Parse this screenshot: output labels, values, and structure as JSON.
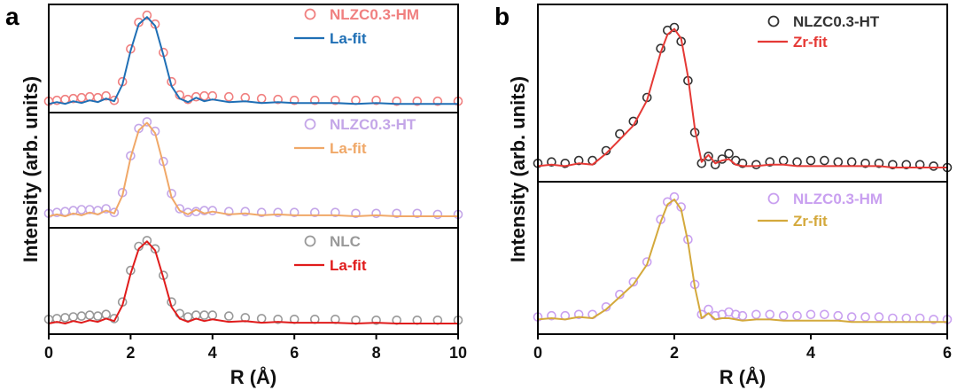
{
  "figure": {
    "panel_a_letter": "a",
    "panel_b_letter": "b"
  },
  "chart_data": [
    {
      "type": "line",
      "panel": "a",
      "xlabel": "R (Å)",
      "ylabel": "Intensity (arb. units)",
      "xlim": [
        0,
        10
      ],
      "xticks": [
        "0",
        "2",
        "4",
        "6",
        "8",
        "10"
      ],
      "subplots": [
        {
          "id": "a-top",
          "series": [
            {
              "name": "NLZC0.3-HM",
              "kind": "markers",
              "color": "#f08080",
              "x": [
                0,
                0.2,
                0.4,
                0.6,
                0.8,
                1.0,
                1.2,
                1.4,
                1.6,
                1.8,
                2.0,
                2.2,
                2.4,
                2.6,
                2.8,
                3.0,
                3.2,
                3.4,
                3.6,
                3.8,
                4.0,
                4.4,
                4.8,
                5.2,
                5.6,
                6.0,
                6.5,
                7.0,
                7.5,
                8.0,
                8.5,
                9.0,
                9.5,
                10.0
              ],
              "y": [
                0.03,
                0.04,
                0.05,
                0.06,
                0.07,
                0.08,
                0.07,
                0.09,
                0.04,
                0.25,
                0.62,
                0.92,
                1.0,
                0.9,
                0.58,
                0.25,
                0.1,
                0.05,
                0.08,
                0.09,
                0.09,
                0.08,
                0.07,
                0.06,
                0.05,
                0.04,
                0.04,
                0.04,
                0.04,
                0.04,
                0.03,
                0.03,
                0.03,
                0.03
              ]
            },
            {
              "name": "La-fit",
              "kind": "line",
              "color": "#1f6fb5",
              "x": [
                0,
                0.2,
                0.4,
                0.6,
                0.8,
                1.0,
                1.2,
                1.4,
                1.6,
                1.8,
                2.0,
                2.2,
                2.4,
                2.6,
                2.8,
                3.0,
                3.2,
                3.4,
                3.6,
                3.8,
                4.0,
                4.4,
                4.8,
                5.2,
                5.6,
                6.0,
                6.5,
                7.0,
                7.5,
                8.0,
                8.5,
                9.0,
                9.5,
                10.0
              ],
              "y": [
                0.0,
                0.02,
                0.0,
                0.03,
                0.01,
                0.04,
                0.02,
                0.06,
                0.03,
                0.22,
                0.6,
                0.9,
                0.98,
                0.88,
                0.55,
                0.2,
                0.06,
                0.02,
                0.07,
                0.03,
                0.05,
                0.02,
                0.03,
                0.01,
                0.02,
                0.01,
                0.01,
                0.01,
                0.0,
                0.01,
                0.0,
                0.0,
                0.0,
                0.0
              ]
            }
          ]
        },
        {
          "id": "a-middle",
          "series": [
            {
              "name": "NLZC0.3-HT",
              "kind": "markers",
              "color": "#c4a6e8",
              "x": [
                0,
                0.2,
                0.4,
                0.6,
                0.8,
                1.0,
                1.2,
                1.4,
                1.6,
                1.8,
                2.0,
                2.2,
                2.4,
                2.6,
                2.8,
                3.0,
                3.2,
                3.4,
                3.6,
                3.8,
                4.0,
                4.4,
                4.8,
                5.2,
                5.6,
                6.0,
                6.5,
                7.0,
                7.5,
                8.0,
                8.5,
                9.0,
                9.5,
                10.0
              ],
              "y": [
                0.03,
                0.04,
                0.05,
                0.06,
                0.07,
                0.07,
                0.06,
                0.08,
                0.04,
                0.25,
                0.64,
                0.93,
                1.0,
                0.9,
                0.58,
                0.24,
                0.08,
                0.04,
                0.05,
                0.06,
                0.06,
                0.05,
                0.05,
                0.04,
                0.04,
                0.04,
                0.04,
                0.04,
                0.03,
                0.03,
                0.03,
                0.03,
                0.02,
                0.02
              ]
            },
            {
              "name": "La-fit",
              "kind": "line",
              "color": "#f0a868",
              "x": [
                0,
                0.2,
                0.4,
                0.6,
                0.8,
                1.0,
                1.2,
                1.4,
                1.6,
                1.8,
                2.0,
                2.2,
                2.4,
                2.6,
                2.8,
                3.0,
                3.2,
                3.4,
                3.6,
                3.8,
                4.0,
                4.4,
                4.8,
                5.2,
                5.6,
                6.0,
                6.5,
                7.0,
                7.5,
                8.0,
                8.5,
                9.0,
                9.5,
                10.0
              ],
              "y": [
                0.0,
                0.02,
                0.0,
                0.03,
                0.01,
                0.04,
                0.02,
                0.06,
                0.03,
                0.22,
                0.62,
                0.91,
                0.99,
                0.88,
                0.55,
                0.2,
                0.06,
                0.02,
                0.07,
                0.03,
                0.05,
                0.02,
                0.03,
                0.01,
                0.02,
                0.01,
                0.01,
                0.01,
                0.0,
                0.01,
                0.0,
                0.0,
                0.0,
                0.0
              ]
            }
          ]
        },
        {
          "id": "a-bottom",
          "series": [
            {
              "name": "NLC",
              "kind": "markers",
              "color": "#999999",
              "x": [
                0,
                0.2,
                0.4,
                0.6,
                0.8,
                1.0,
                1.2,
                1.4,
                1.6,
                1.8,
                2.0,
                2.2,
                2.4,
                2.6,
                2.8,
                3.0,
                3.2,
                3.4,
                3.6,
                3.8,
                4.0,
                4.4,
                4.8,
                5.2,
                5.6,
                6.0,
                6.5,
                7.0,
                7.5,
                8.0,
                8.5,
                9.0,
                9.5,
                10.0
              ],
              "y": [
                0.05,
                0.06,
                0.07,
                0.08,
                0.09,
                0.1,
                0.09,
                0.11,
                0.06,
                0.26,
                0.64,
                0.93,
                1.0,
                0.9,
                0.58,
                0.26,
                0.12,
                0.08,
                0.1,
                0.1,
                0.1,
                0.09,
                0.07,
                0.06,
                0.05,
                0.05,
                0.05,
                0.05,
                0.04,
                0.04,
                0.04,
                0.04,
                0.04,
                0.04
              ]
            },
            {
              "name": "La-fit",
              "kind": "line",
              "color": "#e01b1b",
              "x": [
                0,
                0.2,
                0.4,
                0.6,
                0.8,
                1.0,
                1.2,
                1.4,
                1.6,
                1.8,
                2.0,
                2.2,
                2.4,
                2.6,
                2.8,
                3.0,
                3.2,
                3.4,
                3.6,
                3.8,
                4.0,
                4.4,
                4.8,
                5.2,
                5.6,
                6.0,
                6.5,
                7.0,
                7.5,
                8.0,
                8.5,
                9.0,
                9.5,
                10.0
              ],
              "y": [
                0.0,
                0.02,
                0.0,
                0.03,
                0.01,
                0.04,
                0.02,
                0.06,
                0.03,
                0.22,
                0.6,
                0.9,
                0.99,
                0.88,
                0.55,
                0.2,
                0.06,
                0.02,
                0.06,
                0.03,
                0.05,
                0.02,
                0.03,
                0.01,
                0.02,
                0.01,
                0.01,
                0.01,
                0.0,
                0.01,
                0.0,
                0.0,
                0.0,
                0.0
              ]
            }
          ]
        }
      ]
    },
    {
      "type": "line",
      "panel": "b",
      "xlabel": "R (Å)",
      "ylabel": "Intensity (arb. units)",
      "xlim": [
        0,
        6
      ],
      "xticks": [
        "0",
        "2",
        "4",
        "6"
      ],
      "subplots": [
        {
          "id": "b-top",
          "series": [
            {
              "name": "NLZC0.3-HT",
              "kind": "markers",
              "color": "#333333",
              "x": [
                0,
                0.2,
                0.4,
                0.6,
                0.8,
                1.0,
                1.2,
                1.4,
                1.6,
                1.8,
                1.9,
                2.0,
                2.1,
                2.2,
                2.3,
                2.4,
                2.5,
                2.6,
                2.7,
                2.8,
                2.9,
                3.0,
                3.2,
                3.4,
                3.6,
                3.8,
                4.0,
                4.2,
                4.4,
                4.6,
                4.8,
                5.0,
                5.2,
                5.4,
                5.6,
                5.8,
                6.0
              ],
              "y": [
                0.03,
                0.04,
                0.03,
                0.05,
                0.05,
                0.12,
                0.24,
                0.33,
                0.5,
                0.85,
                0.98,
                1.0,
                0.9,
                0.62,
                0.25,
                0.03,
                0.08,
                0.02,
                0.06,
                0.1,
                0.05,
                0.03,
                0.02,
                0.04,
                0.05,
                0.04,
                0.05,
                0.05,
                0.04,
                0.04,
                0.03,
                0.03,
                0.02,
                0.02,
                0.02,
                0.01,
                0.0
              ]
            },
            {
              "name": "Zr-fit",
              "kind": "line",
              "color": "#e53935",
              "x": [
                0,
                0.2,
                0.4,
                0.6,
                0.8,
                1.0,
                1.2,
                1.4,
                1.6,
                1.8,
                1.9,
                2.0,
                2.1,
                2.2,
                2.3,
                2.4,
                2.5,
                2.6,
                2.7,
                2.8,
                2.9,
                3.0,
                3.2,
                3.4,
                3.6,
                3.8,
                4.0,
                4.2,
                4.4,
                4.6,
                4.8,
                5.0,
                5.2,
                5.4,
                5.6,
                5.8,
                6.0
              ],
              "y": [
                0.01,
                0.02,
                0.01,
                0.03,
                0.02,
                0.1,
                0.2,
                0.3,
                0.48,
                0.82,
                0.95,
                0.99,
                0.92,
                0.65,
                0.28,
                0.04,
                0.09,
                0.03,
                0.05,
                0.06,
                0.02,
                0.01,
                0.01,
                0.02,
                0.02,
                0.01,
                0.01,
                0.01,
                0.01,
                0.01,
                0.01,
                0.01,
                0.0,
                0.0,
                0.0,
                0.0,
                0.0
              ]
            }
          ]
        },
        {
          "id": "b-bottom",
          "series": [
            {
              "name": "NLZC0.3-HM",
              "kind": "markers",
              "color": "#c9a0f0",
              "x": [
                0,
                0.2,
                0.4,
                0.6,
                0.8,
                1.0,
                1.2,
                1.4,
                1.6,
                1.8,
                1.9,
                2.0,
                2.1,
                2.2,
                2.3,
                2.4,
                2.5,
                2.6,
                2.7,
                2.8,
                2.9,
                3.0,
                3.2,
                3.4,
                3.6,
                3.8,
                4.0,
                4.2,
                4.4,
                4.6,
                4.8,
                5.0,
                5.2,
                5.4,
                5.6,
                5.8,
                6.0
              ],
              "y": [
                0.04,
                0.05,
                0.05,
                0.06,
                0.06,
                0.12,
                0.22,
                0.32,
                0.48,
                0.82,
                0.96,
                1.0,
                0.92,
                0.66,
                0.3,
                0.06,
                0.1,
                0.05,
                0.06,
                0.08,
                0.06,
                0.05,
                0.06,
                0.06,
                0.05,
                0.05,
                0.06,
                0.06,
                0.05,
                0.04,
                0.04,
                0.04,
                0.03,
                0.03,
                0.03,
                0.02,
                0.02
              ]
            },
            {
              "name": "Zr-fit",
              "kind": "line",
              "color": "#d4a93c",
              "x": [
                0,
                0.2,
                0.4,
                0.6,
                0.8,
                1.0,
                1.2,
                1.4,
                1.6,
                1.8,
                1.9,
                2.0,
                2.1,
                2.2,
                2.3,
                2.4,
                2.5,
                2.6,
                2.7,
                2.8,
                2.9,
                3.0,
                3.2,
                3.4,
                3.6,
                3.8,
                4.0,
                4.2,
                4.4,
                4.6,
                4.8,
                5.0,
                5.2,
                5.4,
                5.6,
                5.8,
                6.0
              ],
              "y": [
                0.02,
                0.03,
                0.02,
                0.04,
                0.03,
                0.1,
                0.2,
                0.3,
                0.46,
                0.8,
                0.94,
                0.98,
                0.9,
                0.64,
                0.28,
                0.03,
                0.07,
                0.02,
                0.03,
                0.03,
                0.02,
                0.01,
                0.02,
                0.02,
                0.01,
                0.01,
                0.01,
                0.01,
                0.01,
                0.0,
                0.0,
                0.0,
                0.0,
                0.0,
                0.0,
                0.0,
                0.0
              ]
            }
          ]
        }
      ]
    }
  ]
}
